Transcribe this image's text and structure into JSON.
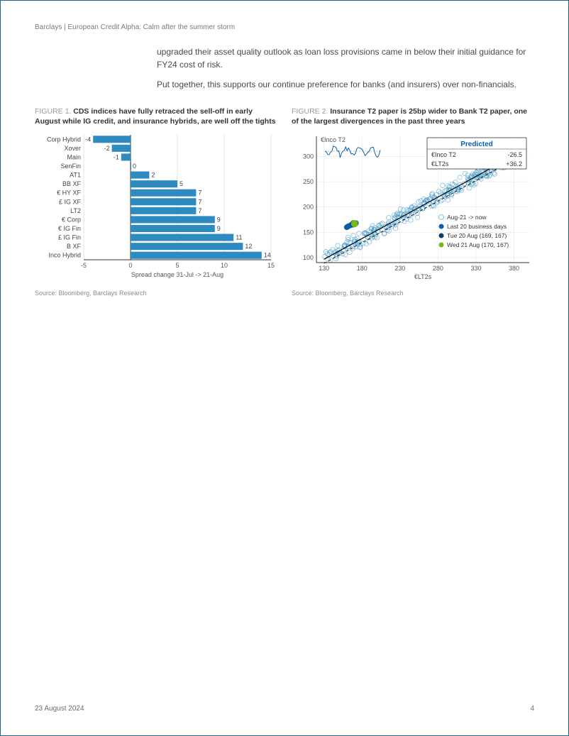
{
  "header": {
    "line": "Barclays | European Credit Alpha: Calm after the summer storm"
  },
  "paragraphs": {
    "p1": "upgraded their asset quality outlook as loan loss provisions came in below their initial guidance for FY24 cost of risk.",
    "p2": "Put together, this supports our continue preference for banks (and insurers) over non-financials."
  },
  "figure1": {
    "label": "FIGURE 1. ",
    "title": "CDS indices have fully retraced the sell-off in early August while IG credit, and insurance hybrids, are well off the tights",
    "type": "bar",
    "categories": [
      "Corp Hybrid",
      "Xover",
      "Main",
      "SenFin",
      "AT1",
      "BB XF",
      "€ HY XF",
      "£ IG XF",
      "LT2",
      "€ Corp",
      "€ IG Fin",
      "£ IG Fin",
      "B XF",
      "Inco Hybrid"
    ],
    "values": [
      -4,
      -2,
      -1,
      0,
      2,
      5,
      7,
      7,
      7,
      9,
      9,
      11,
      12,
      14
    ],
    "xlabel": "Spread change 31-Jul -> 21-Aug",
    "xlim": [
      -5,
      15
    ],
    "xticks": [
      -5,
      0,
      5,
      10,
      15
    ],
    "bar_color": "#2e8bc0",
    "axis_color": "#333333",
    "grid_color": "#d0d0d0",
    "label_fontsize": 9,
    "value_fontsize": 9,
    "tick_fontsize": 9,
    "source": "Source: Bloomberg, Barclays Research"
  },
  "figure2": {
    "label": "FIGURE 2. ",
    "title": "Insurance T2 paper is 25bp wider to Bank T2 paper, one of the largest divergences in the past three years",
    "type": "scatter",
    "ylabel": "€Inco T2",
    "xlabel": "€LT2s",
    "xlim": [
      120,
      400
    ],
    "ylim": [
      90,
      340
    ],
    "xticks": [
      130,
      180,
      230,
      280,
      330,
      380
    ],
    "yticks": [
      100,
      150,
      200,
      250,
      300
    ],
    "background_color": "#ffffff",
    "grid_color": "#e0e0e0",
    "scatter_color": "#8ed0f0",
    "scatter_stroke": "#2e8bc0",
    "trend_color": "#000000",
    "marker_size": 3.2,
    "legend": {
      "items": [
        {
          "label": "Aug-21 -> now",
          "color": "#8ed0f0",
          "type": "open"
        },
        {
          "label": "Last 20 business days",
          "color": "#0a5fa6",
          "type": "fill"
        },
        {
          "label": "Tue 20 Aug (169, 167)",
          "color": "#0a3d6e",
          "type": "fill"
        },
        {
          "label": "Wed 21 Aug (170, 167)",
          "color": "#7cb518",
          "type": "fill"
        }
      ]
    },
    "inset": {
      "title": "Predicted",
      "rows": [
        {
          "label": "€Inco T2",
          "value": "-26.5"
        },
        {
          "label": "€LT2s",
          "value": "+36.2"
        }
      ],
      "title_color": "#0a5fa6",
      "border_color": "#333333"
    },
    "highlight_points": [
      {
        "x": 169,
        "y": 167,
        "color": "#0a3d6e",
        "r": 5
      },
      {
        "x": 170,
        "y": 167,
        "color": "#7cb518",
        "r": 5
      }
    ],
    "recent_points": [
      {
        "x": 160,
        "y": 160
      },
      {
        "x": 162,
        "y": 162
      },
      {
        "x": 165,
        "y": 164
      },
      {
        "x": 168,
        "y": 165
      },
      {
        "x": 172,
        "y": 168
      }
    ],
    "tick_fontsize": 9,
    "source": "Source: Bloomberg, Barclays Research"
  },
  "footer": {
    "date": "23 August 2024",
    "page": "4"
  }
}
